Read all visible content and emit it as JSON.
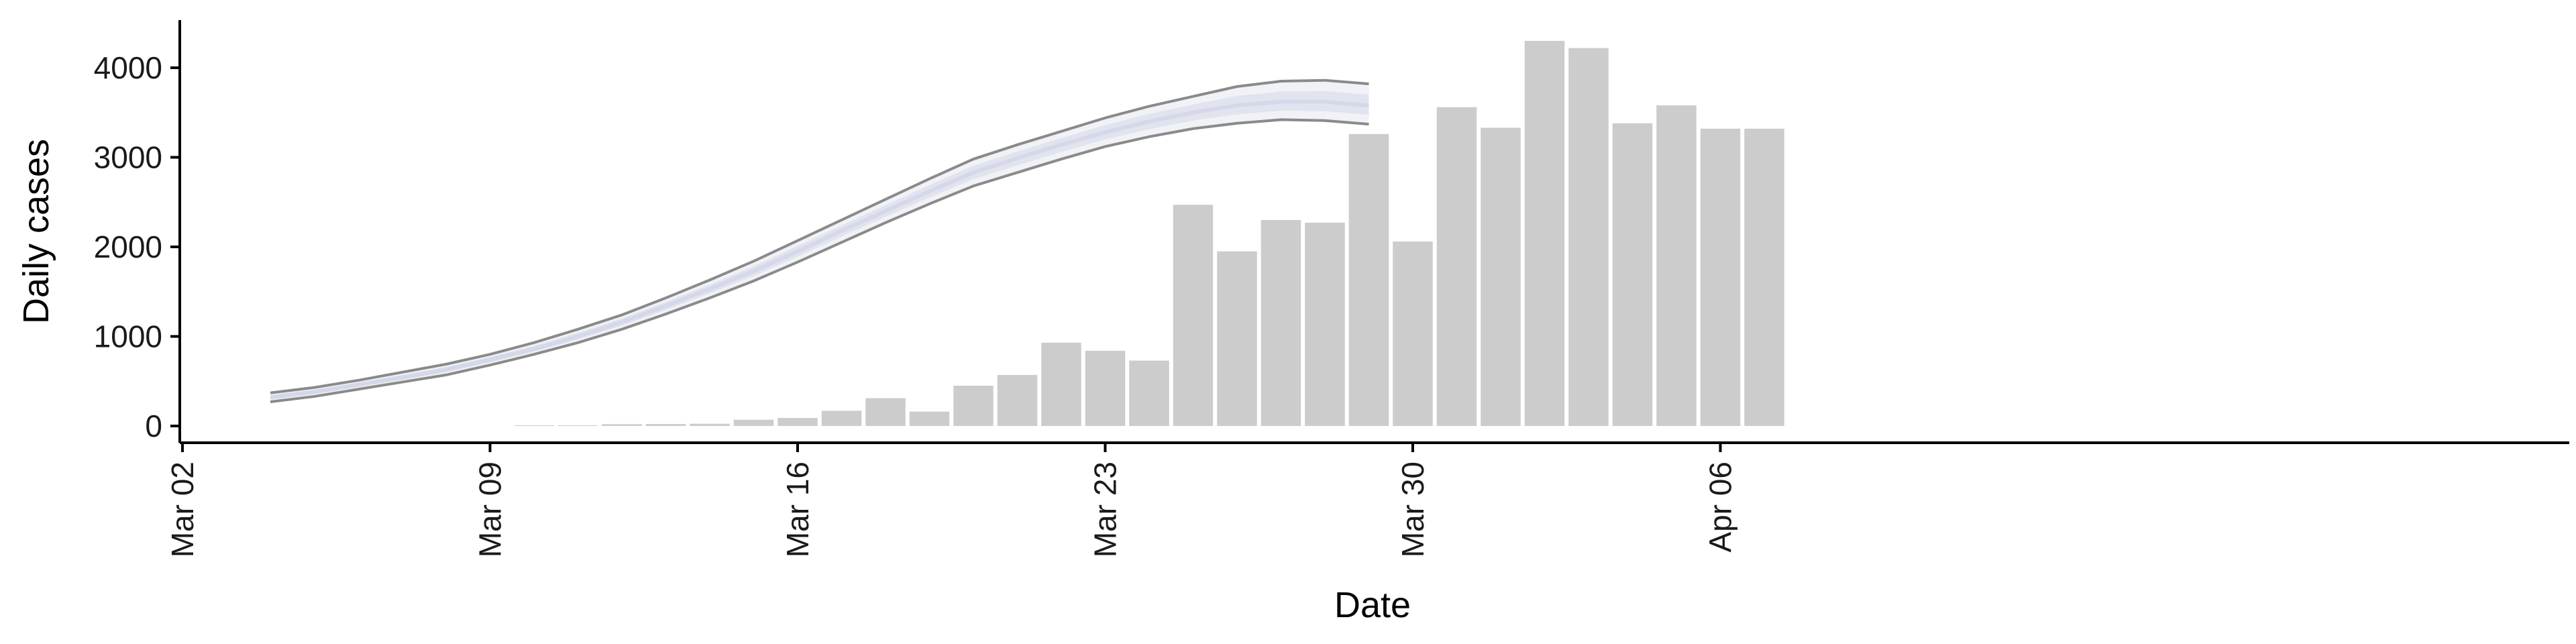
{
  "chart_data": {
    "type": "bar",
    "xlabel": "Date",
    "ylabel": "Daily cases",
    "x_tick_labels": [
      "Mar 02",
      "Mar 09",
      "Mar 16",
      "Mar 23",
      "Mar 30",
      "Apr 06"
    ],
    "y_tick_labels": [
      "0",
      "1000",
      "2000",
      "3000",
      "4000"
    ],
    "y_ticks": [
      0,
      1000,
      2000,
      3000,
      4000
    ],
    "ylim": [
      -200,
      4500
    ],
    "xlim": [
      "2020-03-02",
      "2020-04-08"
    ],
    "grid": false,
    "legend": "none",
    "colors": {
      "bars": "#cccccc",
      "ribbon_outer": "#f1f2f6",
      "ribbon_inner": "#e1e4ef",
      "median_line": "#d4d8e8",
      "bounds_line": "#8a8a8a",
      "axis": "#000000"
    },
    "bars": {
      "dates": [
        "2020-03-10",
        "2020-03-11",
        "2020-03-12",
        "2020-03-13",
        "2020-03-14",
        "2020-03-15",
        "2020-03-16",
        "2020-03-17",
        "2020-03-18",
        "2020-03-19",
        "2020-03-20",
        "2020-03-21",
        "2020-03-22",
        "2020-03-23",
        "2020-03-24",
        "2020-03-25",
        "2020-03-26",
        "2020-03-27",
        "2020-03-28",
        "2020-03-29",
        "2020-03-30",
        "2020-03-31",
        "2020-04-01",
        "2020-04-02",
        "2020-04-03",
        "2020-04-04",
        "2020-04-05",
        "2020-04-06",
        "2020-04-07"
      ],
      "values": [
        5,
        8,
        20,
        22,
        25,
        70,
        90,
        170,
        310,
        160,
        450,
        570,
        930,
        840,
        730,
        2470,
        1950,
        2300,
        2270,
        3260,
        2060,
        3560,
        3330,
        4300,
        4220,
        3380,
        3580,
        3320,
        3320
      ]
    },
    "estimate": {
      "dates": [
        "2020-03-04",
        "2020-03-05",
        "2020-03-06",
        "2020-03-07",
        "2020-03-08",
        "2020-03-09",
        "2020-03-10",
        "2020-03-11",
        "2020-03-12",
        "2020-03-13",
        "2020-03-14",
        "2020-03-15",
        "2020-03-16",
        "2020-03-17",
        "2020-03-18",
        "2020-03-19",
        "2020-03-20",
        "2020-03-21",
        "2020-03-22",
        "2020-03-23",
        "2020-03-24",
        "2020-03-25",
        "2020-03-26",
        "2020-03-27",
        "2020-03-28",
        "2020-03-29"
      ],
      "upper": [
        370,
        430,
        510,
        600,
        690,
        800,
        930,
        1080,
        1240,
        1430,
        1630,
        1840,
        2070,
        2300,
        2530,
        2760,
        2980,
        3140,
        3290,
        3440,
        3570,
        3680,
        3790,
        3850,
        3860,
        3820
      ],
      "median": [
        320,
        380,
        460,
        540,
        630,
        740,
        860,
        1000,
        1160,
        1340,
        1530,
        1730,
        1950,
        2180,
        2400,
        2620,
        2830,
        2990,
        3140,
        3280,
        3400,
        3500,
        3580,
        3620,
        3620,
        3580
      ],
      "lower": [
        270,
        330,
        410,
        490,
        570,
        680,
        800,
        930,
        1080,
        1250,
        1430,
        1620,
        1830,
        2050,
        2270,
        2480,
        2680,
        2830,
        2980,
        3120,
        3230,
        3320,
        3380,
        3420,
        3410,
        3370
      ]
    }
  }
}
